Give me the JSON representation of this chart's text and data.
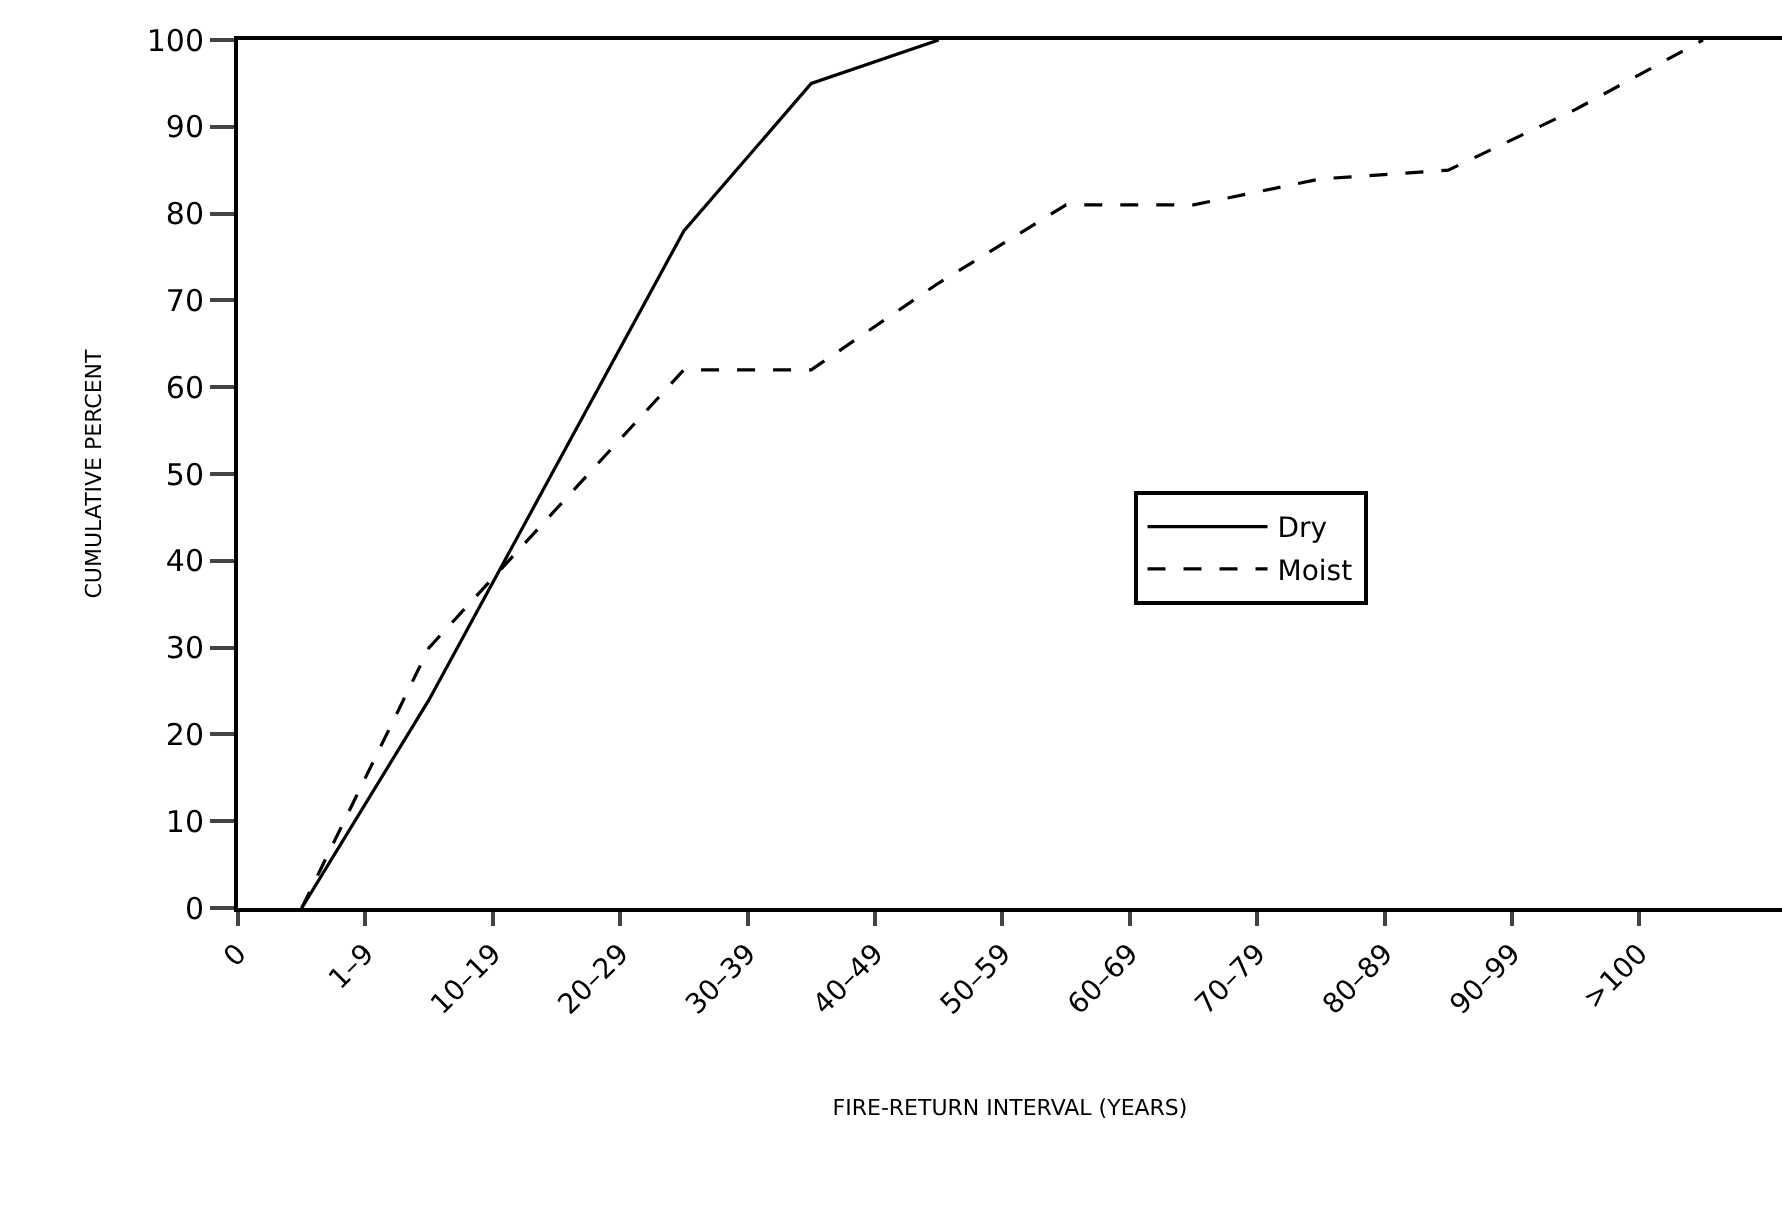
{
  "chart_data": {
    "type": "line",
    "xlabel": "FIRE-RETURN INTERVAL (YEARS)",
    "ylabel": "CUMULATIVE PERCENT",
    "categories": [
      "0",
      null,
      "1–9",
      null,
      "10–19",
      null,
      "20–29",
      null,
      "30–39",
      null,
      "40–49",
      null,
      "50–59",
      null,
      "60–69",
      null,
      "70–79",
      null,
      "80–89",
      null,
      "90–99",
      null,
      ">100",
      null
    ],
    "series": [
      {
        "name": "Dry",
        "color": "#000000",
        "line_style": "solid",
        "values": [
          null,
          0,
          null,
          24,
          null,
          51,
          null,
          78,
          null,
          95,
          null,
          100,
          null,
          null,
          null,
          null,
          null,
          null,
          null,
          null,
          null,
          null,
          null,
          null
        ]
      },
      {
        "name": "Moist",
        "color": "#000000",
        "line_style": "dashed",
        "values": [
          null,
          0,
          null,
          30,
          null,
          46,
          null,
          62,
          null,
          62,
          null,
          72,
          null,
          81,
          null,
          81,
          null,
          84,
          null,
          85,
          null,
          92,
          null,
          100
        ]
      }
    ],
    "ylim": [
      0,
      100
    ],
    "yticks": [
      0,
      10,
      20,
      30,
      40,
      50,
      60,
      70,
      80,
      90,
      100
    ],
    "legend": "right",
    "marker": "none"
  }
}
